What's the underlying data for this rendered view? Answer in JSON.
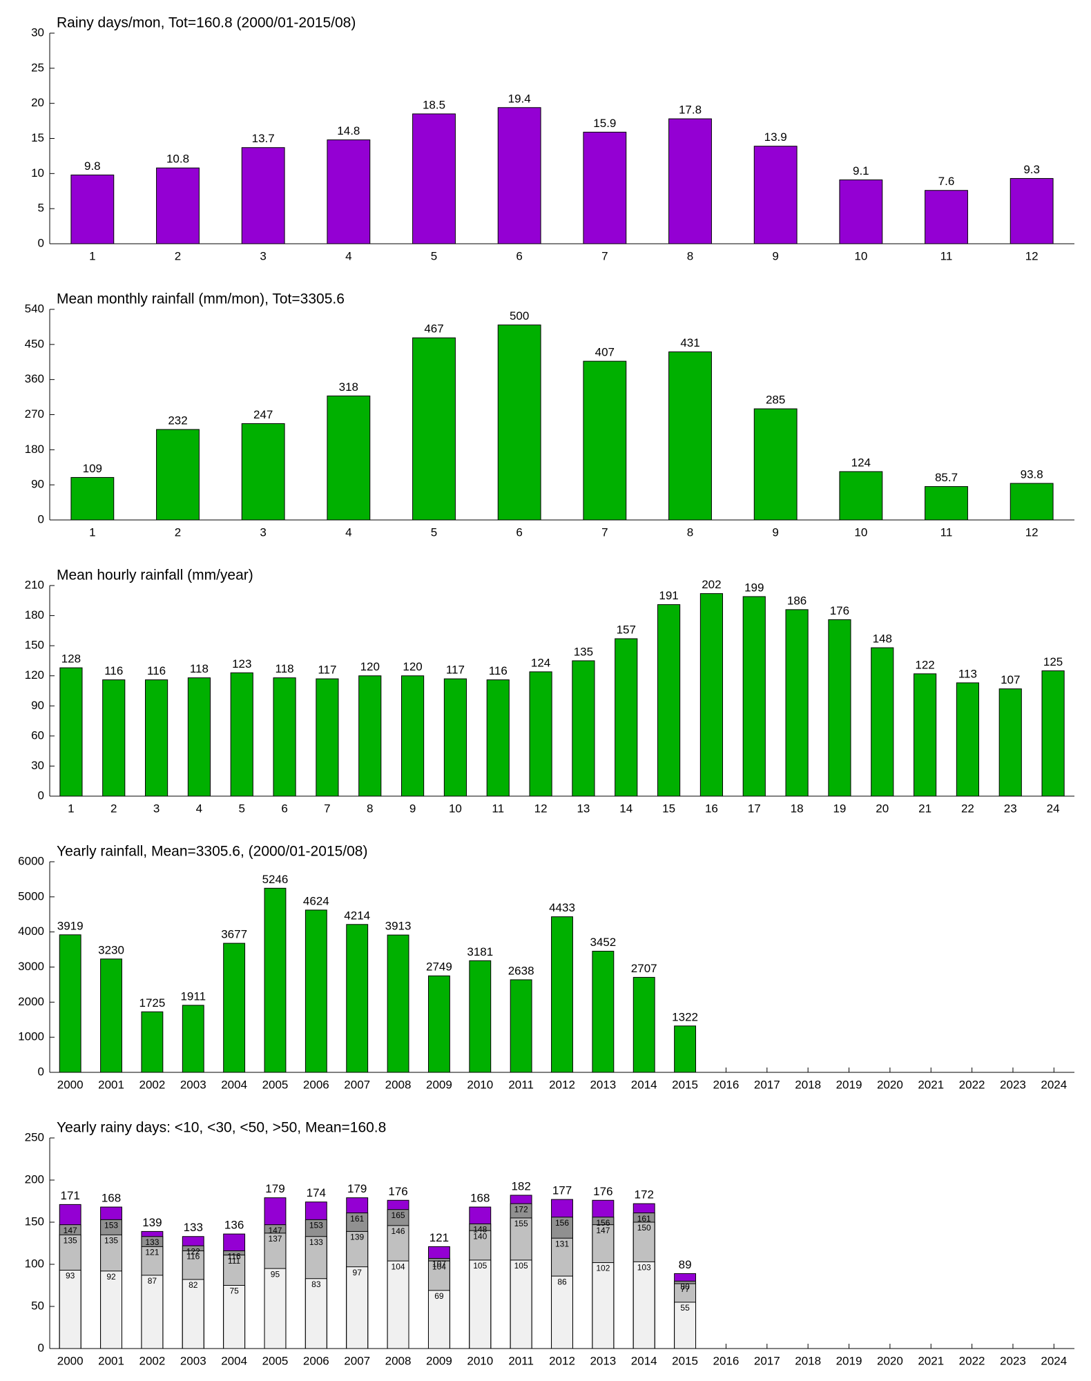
{
  "chart_data": [
    {
      "type": "bar",
      "title": "Rainy days/mon, Tot=160.8 (2000/01-2015/08)",
      "categories": [
        "1",
        "2",
        "3",
        "4",
        "5",
        "6",
        "7",
        "8",
        "9",
        "10",
        "11",
        "12"
      ],
      "values": [
        9.8,
        10.8,
        13.7,
        14.8,
        18.5,
        19.4,
        15.9,
        17.8,
        13.9,
        9.1,
        7.6,
        9.3
      ],
      "color": "#9400d3",
      "ylim": [
        0,
        30
      ],
      "yticks": [
        0,
        5,
        10,
        15,
        20,
        25,
        30
      ]
    },
    {
      "type": "bar",
      "title": "Mean monthly rainfall (mm/mon), Tot=3305.6",
      "categories": [
        "1",
        "2",
        "3",
        "4",
        "5",
        "6",
        "7",
        "8",
        "9",
        "10",
        "11",
        "12"
      ],
      "values": [
        109,
        232,
        247,
        318,
        467,
        500,
        407,
        431,
        285,
        124,
        85.7,
        93.8
      ],
      "color": "#00b000",
      "ylim": [
        0,
        540
      ],
      "yticks": [
        0,
        90,
        180,
        270,
        360,
        450,
        540
      ]
    },
    {
      "type": "bar",
      "title": "Mean hourly rainfall (mm/year)",
      "categories": [
        "1",
        "2",
        "3",
        "4",
        "5",
        "6",
        "7",
        "8",
        "9",
        "10",
        "11",
        "12",
        "13",
        "14",
        "15",
        "16",
        "17",
        "18",
        "19",
        "20",
        "21",
        "22",
        "23",
        "24"
      ],
      "values": [
        128,
        116,
        116,
        118,
        123,
        118,
        117,
        120,
        120,
        117,
        116,
        124,
        135,
        157,
        191,
        202,
        199,
        186,
        176,
        148,
        122,
        113,
        107,
        125
      ],
      "color": "#00b000",
      "ylim": [
        0,
        210
      ],
      "yticks": [
        0,
        30,
        60,
        90,
        120,
        150,
        180,
        210
      ]
    },
    {
      "type": "bar",
      "title": "Yearly rainfall, Mean=3305.6, (2000/01-2015/08)",
      "categories": [
        "2000",
        "2001",
        "2002",
        "2003",
        "2004",
        "2005",
        "2006",
        "2007",
        "2008",
        "2009",
        "2010",
        "2011",
        "2012",
        "2013",
        "2014",
        "2015",
        "2016",
        "2017",
        "2018",
        "2019",
        "2020",
        "2021",
        "2022",
        "2023",
        "2024"
      ],
      "values": [
        3919,
        3230,
        1725,
        1911,
        3677,
        5246,
        4624,
        4214,
        3913,
        2749,
        3181,
        2638,
        4433,
        3452,
        2707,
        1322,
        null,
        null,
        null,
        null,
        null,
        null,
        null,
        null,
        null
      ],
      "color": "#00b000",
      "ylim": [
        0,
        6000
      ],
      "yticks": [
        0,
        1000,
        2000,
        3000,
        4000,
        5000,
        6000
      ]
    },
    {
      "type": "overlap-bar",
      "title": "Yearly rainy days: <10, <30, <50, >50, Mean=160.8",
      "categories": [
        "2000",
        "2001",
        "2002",
        "2003",
        "2004",
        "2005",
        "2006",
        "2007",
        "2008",
        "2009",
        "2010",
        "2011",
        "2012",
        "2013",
        "2014",
        "2015",
        "2016",
        "2017",
        "2018",
        "2019",
        "2020",
        "2021",
        "2022",
        "2023",
        "2024"
      ],
      "series": [
        {
          "color": "#f0f0f0",
          "values": [
            93,
            92,
            87,
            82,
            75,
            95,
            83,
            97,
            104,
            69,
            105,
            105,
            86,
            102,
            103,
            55,
            null,
            null,
            null,
            null,
            null,
            null,
            null,
            null,
            null
          ]
        },
        {
          "color": "#c0c0c0",
          "values": [
            135,
            135,
            121,
            116,
            111,
            137,
            133,
            139,
            146,
            104,
            140,
            155,
            131,
            147,
            150,
            77,
            null,
            null,
            null,
            null,
            null,
            null,
            null,
            null,
            null
          ]
        },
        {
          "color": "#909090",
          "values": [
            147,
            153,
            133,
            122,
            116,
            147,
            153,
            161,
            165,
            107,
            148,
            172,
            156,
            156,
            161,
            80,
            null,
            null,
            null,
            null,
            null,
            null,
            null,
            null,
            null
          ]
        },
        {
          "color": "#9400d3",
          "values": [
            171,
            168,
            139,
            133,
            136,
            179,
            174,
            179,
            176,
            121,
            168,
            182,
            177,
            176,
            172,
            89,
            null,
            null,
            null,
            null,
            null,
            null,
            null,
            null,
            null
          ]
        }
      ],
      "ylim": [
        0,
        250
      ],
      "yticks": [
        0,
        50,
        100,
        150,
        200,
        250
      ]
    }
  ]
}
